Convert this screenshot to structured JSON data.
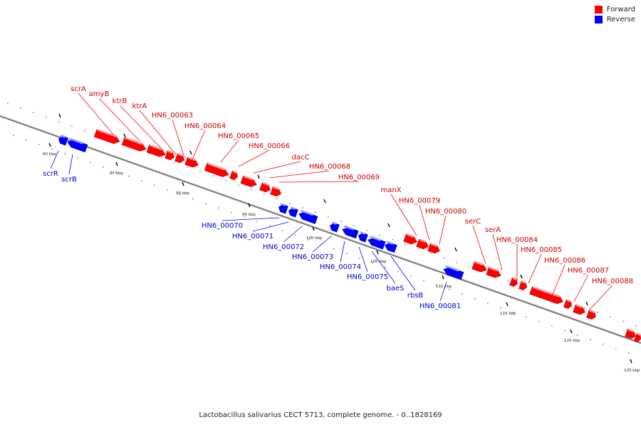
{
  "title": "Lactobacillus salivarius CECT 5713, complete genome. - 0..1828169",
  "legend": {
    "forward_label": "Forward",
    "reverse_label": "Reverse",
    "forward_color": "#ff0000",
    "reverse_color": "#0000ff"
  },
  "kbp_ticks": [
    "80 kbp",
    "85 kbp",
    "90 kbp",
    "95 kbp",
    "100 kbp",
    "105 kbp",
    "110 kbp",
    "115 kbp",
    "120 kbp",
    "125 kbp"
  ],
  "forward_genes": [
    "scrA",
    "amyB",
    "ktrB",
    "ktrA",
    "HN6_00063",
    "HN6_00064",
    "HN6_00065",
    "HN6_00066",
    "dacC",
    "HN6_00068",
    "HN6_00069",
    "manX",
    "HN6_00079",
    "HN6_00080",
    "serC",
    "serA",
    "HN6_00084",
    "HN6_00085",
    "HN6_00086",
    "HN6_00087",
    "HN6_00088"
  ],
  "reverse_genes": [
    "scrR",
    "scrB",
    "HN6_00070",
    "HN6_00071",
    "HN6_00072",
    "HN6_00073",
    "HN6_00074",
    "HN6_00075",
    "baeS",
    "rbsB",
    "HN6_00081"
  ]
}
